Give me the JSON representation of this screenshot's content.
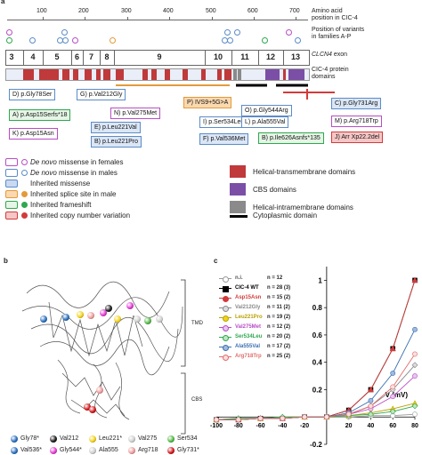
{
  "panel_labels": {
    "a": "a",
    "b": "b",
    "c": "c"
  },
  "panel_a": {
    "ruler_ticks": [
      "100",
      "200",
      "300",
      "400",
      "500",
      "600",
      "700"
    ],
    "label_aa": "Amino acid",
    "label_aa2": "position in CIC-4",
    "label_variants": "Position of variants",
    "label_variants2": "in families A-P",
    "label_exon_italic": "CLCN4",
    "label_exon": " exon",
    "label_protein": "CIC-4 protein",
    "label_protein2": "domains",
    "exons": [
      "3",
      "4",
      "5",
      "6",
      "7",
      "8",
      "9",
      "10",
      "11",
      "12",
      "13"
    ],
    "variants": [
      {
        "text": "D) p.Gly78Ser",
        "color": "#5b8cc7",
        "bg": "#fff"
      },
      {
        "text": "A) p.Asp15Serfs*18",
        "color": "#2fa84f",
        "bg": "#e6f5e6"
      },
      {
        "text": "K) p.Asp15Asn",
        "color": "#b84dc4",
        "bg": "#fff"
      },
      {
        "text": "G) p.Val212Gly",
        "color": "#5b8cc7",
        "bg": "#fff"
      },
      {
        "text": "E) p.Leu221Val",
        "color": "#5b8cc7",
        "bg": "#dbe6f6"
      },
      {
        "text": "B) p.Leu221Pro",
        "color": "#5b8cc7",
        "bg": "#dbe6f6"
      },
      {
        "text": "N) p.Val275Met",
        "color": "#b84dc4",
        "bg": "#fff"
      },
      {
        "text": "P) IVS9+5G>A",
        "color": "#e39a3a",
        "bg": "#fbd9b0"
      },
      {
        "text": "I) p.Ser534Leu",
        "color": "#5b8cc7",
        "bg": "#fff"
      },
      {
        "text": "F) p.Val536Met",
        "color": "#5b8cc7",
        "bg": "#dbe6f6"
      },
      {
        "text": "O) p.Gly544Arg",
        "color": "#5b8cc7",
        "bg": "#fff"
      },
      {
        "text": "L) p.Ala555Val",
        "color": "#5b8cc7",
        "bg": "#fff"
      },
      {
        "text": "B) p.Ile626Asnfs*135",
        "color": "#2fa84f",
        "bg": "#e6f5e6"
      },
      {
        "text": "C) p.Gly731Arg",
        "color": "#5b8cc7",
        "bg": "#dbe6f6"
      },
      {
        "text": "M) p.Arg718Trp",
        "color": "#b84dc4",
        "bg": "#fff"
      },
      {
        "text": "J) Arr Xp22.2del",
        "color": "#d23b3b",
        "bg": "#f6c6c6"
      }
    ],
    "legend": [
      {
        "text": "De novo missense in females",
        "italic_prefix": "De novo",
        "rest": " missense in females",
        "border": "#b84dc4",
        "bg": "#fff",
        "dot": "#b84dc4"
      },
      {
        "text": "De novo missense in males",
        "italic_prefix": "De novo",
        "rest": " missense in males",
        "border": "#5b8cc7",
        "bg": "#fff",
        "dot": "#5b8cc7"
      },
      {
        "text": "Inherited missense",
        "italic_prefix": "",
        "rest": "Inherited missense",
        "border": "#5b8cc7",
        "bg": "#c9d9f1",
        "dot": ""
      },
      {
        "text": "Inherited splice site in male",
        "italic_prefix": "",
        "rest": "Inherited splice site in male",
        "border": "#e39a3a",
        "bg": "#fbd9b0",
        "dot": "#e39a3a"
      },
      {
        "text": "Inherited frameshift",
        "italic_prefix": "",
        "rest": "Inherited frameshift",
        "border": "#2fa84f",
        "bg": "#e6f5e6",
        "dot": "#2fa84f"
      },
      {
        "text": "Inherited copy number variation",
        "italic_prefix": "",
        "rest": "Inherited copy number variation",
        "border": "#d23b3b",
        "bg": "#f6c6c6",
        "dot": "#d23b3b"
      }
    ],
    "domain_legend": [
      {
        "text": "Helical-transmembrane domains",
        "color": "#c0393b"
      },
      {
        "text": "CBS domains",
        "color": "#7b4fa6"
      },
      {
        "text": "Helical-intramembrane domains",
        "color": "#8a8a8a"
      },
      {
        "text": "Cytoplasmic domain",
        "color": "#000000"
      }
    ]
  },
  "panel_b": {
    "tmd": "TMD",
    "cbs": "CBS",
    "key": [
      {
        "label": "Gly78*",
        "color": "#2b6fc0"
      },
      {
        "label": "Val212",
        "color": "#1a1a1a"
      },
      {
        "label": "Leu221*",
        "color": "#f3d21a"
      },
      {
        "label": "Val275",
        "color": "#cfcfcf"
      },
      {
        "label": "Ser534",
        "color": "#55b848"
      },
      {
        "label": "Val536*",
        "color": "#2b6fc0"
      },
      {
        "label": "Gly544*",
        "color": "#e23bd2"
      },
      {
        "label": "Ala555",
        "color": "#cfcfcf"
      },
      {
        "label": "Arg718",
        "color": "#f09b9b"
      },
      {
        "label": "Gly731*",
        "color": "#d0161a"
      }
    ]
  },
  "chart_data": {
    "type": "line",
    "xlabel": "V (mV)",
    "xticks": [
      "-100",
      "-80",
      "-60",
      "-40",
      "-20",
      "20",
      "40",
      "60",
      "80"
    ],
    "yticks": [
      "1",
      "0.8",
      "0.6",
      "0.4",
      "0.2",
      "-0.2"
    ],
    "xlim": [
      -100,
      80
    ],
    "ylim": [
      -0.2,
      1.1
    ],
    "x": [
      -100,
      -80,
      -60,
      -40,
      -20,
      0,
      20,
      40,
      60,
      80
    ],
    "series": [
      {
        "name": "n.i.",
        "n": "n = 12",
        "color": "#999999",
        "fill": "#ffffff",
        "values": [
          -0.02,
          -0.02,
          -0.01,
          -0.01,
          0,
          0,
          0,
          0.01,
          0.01,
          0.02
        ]
      },
      {
        "name": "CIC-4 WT",
        "n": "n = 28 (3)",
        "color": "#000000",
        "fill": "#000000",
        "values": [
          -0.02,
          -0.02,
          -0.01,
          -0.01,
          0,
          0,
          0.05,
          0.2,
          0.5,
          1.0
        ]
      },
      {
        "name": "Asp15Asn",
        "n": "n = 15 (2)",
        "color": "#d23b3b",
        "fill": "#d23b3b",
        "values": [
          -0.02,
          -0.02,
          -0.01,
          -0.01,
          0,
          0,
          0.05,
          0.2,
          0.5,
          1.0
        ]
      },
      {
        "name": "Val212Gly",
        "n": "n = 11 (2)",
        "color": "#888888",
        "fill": "#dddddd",
        "values": [
          -0.02,
          -0.02,
          -0.01,
          -0.01,
          0,
          0,
          0.02,
          0.08,
          0.2,
          0.38
        ]
      },
      {
        "name": "Leu221Pro",
        "n": "n = 19 (2)",
        "color": "#b8a200",
        "fill": "#f3d21a",
        "values": [
          -0.02,
          -0.01,
          -0.01,
          0,
          0,
          0,
          0.01,
          0.03,
          0.06,
          0.1
        ]
      },
      {
        "name": "Val275Met",
        "n": "n = 12 (2)",
        "color": "#b84dc4",
        "fill": "#e8c5ee",
        "values": [
          -0.02,
          -0.02,
          -0.01,
          -0.01,
          0,
          0,
          0.02,
          0.06,
          0.15,
          0.3
        ]
      },
      {
        "name": "Ser534Leu",
        "n": "n = 20 (2)",
        "color": "#2fa84f",
        "fill": "#bde6c3",
        "values": [
          -0.02,
          -0.01,
          -0.01,
          0,
          0,
          0,
          0.01,
          0.02,
          0.04,
          0.08
        ]
      },
      {
        "name": "Ala555Val",
        "n": "n = 17 (2)",
        "color": "#3a6fb0",
        "fill": "#9fb9e0",
        "values": [
          -0.02,
          -0.02,
          -0.01,
          -0.01,
          0,
          0,
          0.03,
          0.12,
          0.32,
          0.64
        ]
      },
      {
        "name": "Arg718Trp",
        "n": "n = 25 (2)",
        "color": "#e06b6b",
        "fill": "#fbdede",
        "values": [
          -0.02,
          -0.02,
          -0.01,
          -0.01,
          0,
          0,
          0.02,
          0.08,
          0.22,
          0.46
        ]
      }
    ]
  }
}
